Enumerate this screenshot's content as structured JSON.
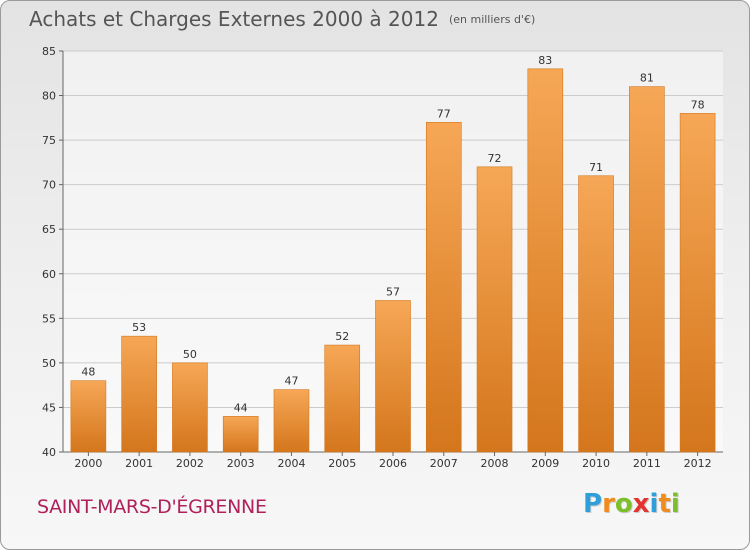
{
  "header": {
    "title": "Achats et Charges Externes 2000 à 2012",
    "subtitle": "(en milliers d'€)"
  },
  "commune": "SAINT-MARS-D'ÉGRENNE",
  "logo": {
    "letters": [
      "P",
      "r",
      "o",
      "x",
      "i",
      "t",
      "i"
    ],
    "colors": [
      "#2e9fd8",
      "#f08c1e",
      "#7cbf2a",
      "#e3342f",
      "#2e9fd8",
      "#f08c1e",
      "#7cbf2a"
    ]
  },
  "colors": {
    "bar": "#f0902e",
    "bar_light": "#f6a756",
    "bar_dark": "#d4761c",
    "grid": "#cccccc",
    "axis": "#666666",
    "commune": "#b0215c"
  },
  "chart_data": {
    "type": "bar",
    "categories": [
      "2000",
      "2001",
      "2002",
      "2003",
      "2004",
      "2005",
      "2006",
      "2007",
      "2008",
      "2009",
      "2010",
      "2011",
      "2012"
    ],
    "values": [
      48,
      53,
      50,
      44,
      47,
      52,
      57,
      77,
      72,
      83,
      71,
      81,
      78
    ],
    "ylim": [
      40,
      85
    ],
    "yticks": [
      40,
      45,
      50,
      55,
      60,
      65,
      70,
      75,
      80,
      85
    ],
    "grid": true
  }
}
